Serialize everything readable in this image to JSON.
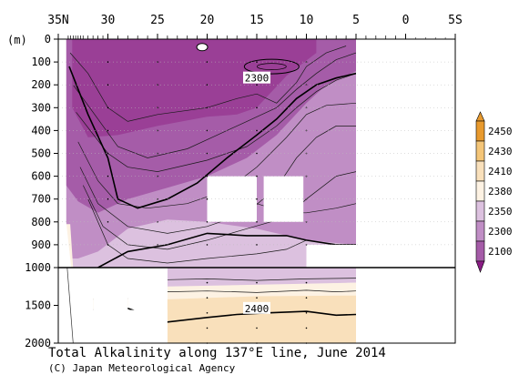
{
  "chart_data": {
    "type": "heatmap",
    "title": "Total Alkalinity along 137°E line, June 2014",
    "credit": "(C) Japan Meteorological Agency",
    "y_unit": "(m)",
    "x_ticks": [
      "35N",
      "30",
      "25",
      "20",
      "15",
      "10",
      "5",
      "0",
      "5S"
    ],
    "x_tick_lat": [
      35,
      30,
      25,
      20,
      15,
      10,
      5,
      0,
      -5
    ],
    "xlim": [
      35,
      -5
    ],
    "y_ticks_upper": [
      "0",
      "100",
      "200",
      "300",
      "400",
      "500",
      "600",
      "700",
      "800",
      "900",
      "1000"
    ],
    "y_ticks_lower": [
      "1500",
      "2000"
    ],
    "y_upper_range": [
      0,
      1000
    ],
    "y_lower_range": [
      1000,
      2000
    ],
    "station_latitudes": [
      34,
      33.75,
      33.5,
      33.25,
      33,
      32.75,
      32.5,
      32,
      31.5,
      31,
      30.5,
      30,
      29,
      28,
      27,
      26,
      25,
      24,
      23,
      22,
      21,
      20,
      19,
      18,
      17,
      16,
      15,
      14,
      13,
      12,
      11,
      10,
      9,
      8,
      7,
      6,
      5,
      4,
      3,
      2,
      1
    ],
    "colorbar": {
      "levels": [
        2450,
        2430,
        2410,
        2380,
        2350,
        2300,
        2100
      ],
      "labels": [
        "2450",
        "2430",
        "2410",
        "2380",
        "2350",
        "2300",
        "2100"
      ],
      "colors": [
        "#e89a2e",
        "#f4c578",
        "#f9e0bb",
        "#fdf2e3",
        "#dcc1df",
        "#c08ec5",
        "#a55ca8",
        "#8b1c85"
      ]
    },
    "contour_labels": [
      {
        "text": "2300",
        "lat": 15,
        "depth": 170
      },
      {
        "text": "2400",
        "lat": 15,
        "depth": 1540
      }
    ],
    "fields": {
      "deep_purple_2300_region": "TA < 2300 from 0 to ~700 m north of 22N, shoaling to ~250 m near 10N",
      "light_purple_2350_region": "TA 2300–2380 between the 2300 and 2380 isolines",
      "cream_2400_region": "TA 2380–2410 below ~1000 m, 2400 isoline near 1600 m"
    }
  }
}
